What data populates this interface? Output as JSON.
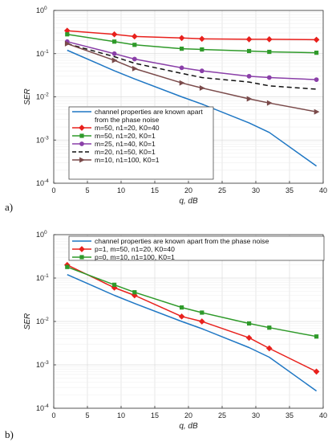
{
  "chart_data": [
    {
      "type": "line",
      "panel_label": "a)",
      "xlabel": "q, dB",
      "ylabel": "SER",
      "xlim": [
        0,
        40
      ],
      "ylim": [
        0.0001,
        1
      ],
      "y_scale": "log",
      "grid": true,
      "legend_position": "bottom-left",
      "x_ticks": [
        "0",
        "5",
        "10",
        "15",
        "20",
        "25",
        "30",
        "35",
        "40"
      ],
      "y_ticks": [
        "10-4",
        "10-3",
        "10-2",
        "10-1",
        "100"
      ],
      "series": [
        {
          "name": "channel properties are known apart from the phase noise",
          "color": "#1f77c4",
          "dash": "solid",
          "marker": "none",
          "x": [
            2,
            9,
            12,
            19,
            22,
            29,
            32,
            39
          ],
          "y": [
            0.12,
            0.04,
            0.026,
            0.01,
            0.0068,
            0.0025,
            0.0015,
            0.00025
          ]
        },
        {
          "name": "m=50, n1=20, K0=40",
          "color": "#e8201c",
          "dash": "solid",
          "marker": "diamond",
          "x": [
            2,
            9,
            12,
            19,
            22,
            29,
            32,
            39
          ],
          "y": [
            0.34,
            0.28,
            0.25,
            0.23,
            0.22,
            0.215,
            0.215,
            0.21
          ]
        },
        {
          "name": "m=50, n1=20, K0=1",
          "color": "#2f9a2a",
          "dash": "solid",
          "marker": "square",
          "x": [
            2,
            9,
            12,
            19,
            22,
            29,
            32,
            39
          ],
          "y": [
            0.28,
            0.19,
            0.16,
            0.13,
            0.125,
            0.115,
            0.11,
            0.105
          ]
        },
        {
          "name": "m=25, n1=40, K0=1",
          "color": "#8a3fa8",
          "dash": "solid",
          "marker": "circle",
          "x": [
            2,
            9,
            12,
            19,
            22,
            29,
            32,
            39
          ],
          "y": [
            0.19,
            0.1,
            0.075,
            0.047,
            0.04,
            0.03,
            0.028,
            0.025
          ]
        },
        {
          "name": "m=20, n1=50, K0=1",
          "color": "#111111",
          "dash": "dashed",
          "marker": "none",
          "x": [
            2,
            9,
            12,
            19,
            22,
            29,
            32,
            39
          ],
          "y": [
            0.17,
            0.085,
            0.06,
            0.035,
            0.028,
            0.022,
            0.018,
            0.015
          ]
        },
        {
          "name": "m=10, n1=100, K0=1",
          "color": "#7a4a4a",
          "dash": "solid",
          "marker": "triangle-right",
          "x": [
            2,
            9,
            12,
            19,
            22,
            29,
            32,
            39
          ],
          "y": [
            0.17,
            0.07,
            0.045,
            0.021,
            0.016,
            0.009,
            0.0072,
            0.0045
          ]
        }
      ]
    },
    {
      "type": "line",
      "panel_label": "b)",
      "xlabel": "q, dB",
      "ylabel": "SER",
      "xlim": [
        0,
        40
      ],
      "ylim": [
        0.0001,
        1
      ],
      "y_scale": "log",
      "grid": true,
      "legend_position": "top-left",
      "x_ticks": [
        "0",
        "5",
        "10",
        "15",
        "20",
        "25",
        "30",
        "35",
        "40"
      ],
      "y_ticks": [
        "10-4",
        "10-3",
        "10-2",
        "10-1",
        "100"
      ],
      "series": [
        {
          "name": "channel properties are known apart from the phase noise",
          "color": "#1f77c4",
          "dash": "solid",
          "marker": "none",
          "x": [
            2,
            9,
            12,
            19,
            22,
            29,
            32,
            39
          ],
          "y": [
            0.12,
            0.04,
            0.026,
            0.01,
            0.0068,
            0.0025,
            0.0015,
            0.00025
          ]
        },
        {
          "name": "p=1, m=50, n1=20, K0=40",
          "color": "#e8201c",
          "dash": "solid",
          "marker": "diamond",
          "x": [
            2,
            9,
            12,
            19,
            22,
            29,
            32,
            39
          ],
          "y": [
            0.2,
            0.06,
            0.04,
            0.013,
            0.01,
            0.0042,
            0.0024,
            0.0007
          ]
        },
        {
          "name": "p=0, m=10, n1=100, K0=1",
          "color": "#2f9a2a",
          "dash": "solid",
          "marker": "square",
          "x": [
            2,
            9,
            12,
            19,
            22,
            29,
            32,
            39
          ],
          "y": [
            0.18,
            0.07,
            0.047,
            0.021,
            0.016,
            0.009,
            0.0072,
            0.0045
          ]
        }
      ]
    }
  ]
}
